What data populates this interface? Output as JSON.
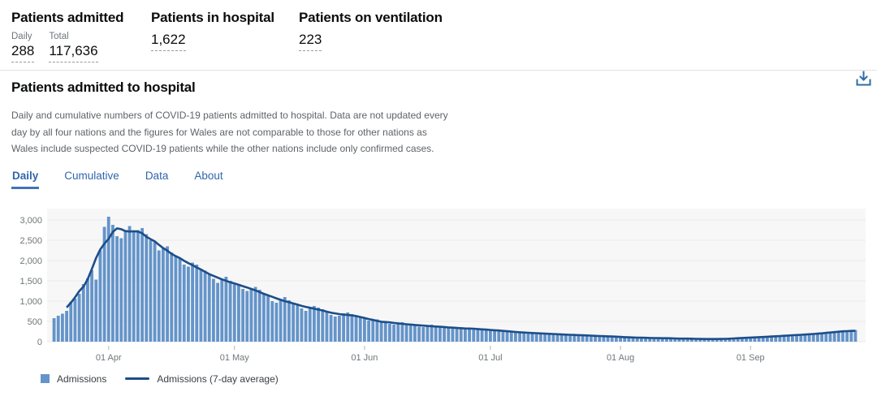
{
  "summary": {
    "admitted": {
      "title": "Patients admitted",
      "daily_label": "Daily",
      "daily_value": "288",
      "total_label": "Total",
      "total_value": "117,636"
    },
    "in_hospital": {
      "title": "Patients in hospital",
      "value": "1,622"
    },
    "ventilation": {
      "title": "Patients on ventilation",
      "value": "223"
    }
  },
  "card": {
    "title": "Patients admitted to hospital",
    "description": "Daily and cumulative numbers of COVID-19 patients admitted to hospital. Data are not updated every day by all four nations and the figures for Wales are not comparable to those for other nations as Wales include suspected COVID-19 patients while the other nations include only confirmed cases.",
    "tabs": [
      {
        "label": "Daily",
        "active": true
      },
      {
        "label": "Cumulative",
        "active": false
      },
      {
        "label": "Data",
        "active": false
      },
      {
        "label": "About",
        "active": false
      }
    ],
    "download_icon": "download-icon"
  },
  "colors": {
    "bar": "#6494ca",
    "line": "#1d4e89",
    "plot_bg": "#f7f7f7",
    "grid": "#ebebeb",
    "axis_text": "#6f777b",
    "tick": "#b1b4b6",
    "accent_blue": "#2f66ad"
  },
  "chart_data": {
    "type": "bar",
    "title": "Patients admitted to hospital (Daily)",
    "start_date": "19 Mar 2020",
    "ylim": [
      0,
      3000
    ],
    "grid": true,
    "legend_position": "bottom-left",
    "y_ticks": [
      0,
      500,
      1000,
      1500,
      2000,
      2500,
      3000
    ],
    "y_tick_labels": [
      "0",
      "500",
      "1,000",
      "1,500",
      "2,000",
      "2,500",
      "3,000"
    ],
    "x_tick_labels": [
      "01 Apr",
      "01 May",
      "01 Jun",
      "01 Jul",
      "01 Aug",
      "01 Sep"
    ],
    "x_tick_indices": [
      13,
      43,
      74,
      104,
      135,
      166
    ],
    "legend": [
      "Admissions",
      "Admissions (7-day average)"
    ],
    "series": [
      {
        "name": "Admissions",
        "type": "bar",
        "values": [
          580,
          640,
          690,
          760,
          980,
          1060,
          1180,
          1420,
          1560,
          1760,
          1530,
          2250,
          2830,
          3080,
          2880,
          2600,
          2550,
          2750,
          2850,
          2700,
          2750,
          2800,
          2650,
          2500,
          2450,
          2250,
          2300,
          2350,
          2200,
          2100,
          2050,
          1900,
          1850,
          1950,
          1900,
          1800,
          1750,
          1650,
          1550,
          1450,
          1550,
          1600,
          1500,
          1450,
          1400,
          1300,
          1250,
          1320,
          1350,
          1280,
          1200,
          1150,
          1000,
          960,
          1050,
          1100,
          1020,
          950,
          900,
          820,
          760,
          850,
          880,
          840,
          800,
          740,
          660,
          620,
          640,
          700,
          720,
          680,
          640,
          600,
          560,
          520,
          540,
          550,
          500,
          480,
          440,
          420,
          460,
          480,
          450,
          430,
          400,
          370,
          360,
          400,
          420,
          390,
          370,
          350,
          330,
          320,
          350,
          360,
          340,
          320,
          300,
          290,
          310,
          320,
          300,
          290,
          270,
          250,
          240,
          260,
          250,
          240,
          230,
          210,
          200,
          195,
          210,
          220,
          200,
          190,
          180,
          170,
          160,
          170,
          180,
          170,
          160,
          150,
          140,
          135,
          140,
          150,
          140,
          130,
          120,
          115,
          105,
          108,
          112,
          100,
          95,
          90,
          86,
          92,
          96,
          88,
          82,
          76,
          80,
          86,
          76,
          70,
          66,
          72,
          76,
          70,
          66,
          60,
          58,
          64,
          70,
          74,
          80,
          86,
          92,
          96,
          102,
          108,
          112,
          120,
          116,
          126,
          132,
          142,
          152,
          146,
          158,
          166,
          172,
          182,
          176,
          188,
          196,
          206,
          216,
          226,
          238,
          252,
          246,
          262,
          278,
          288
        ]
      },
      {
        "name": "Admissions (7-day average)",
        "type": "line",
        "derived": "7-day centered moving average of Admissions"
      }
    ]
  }
}
